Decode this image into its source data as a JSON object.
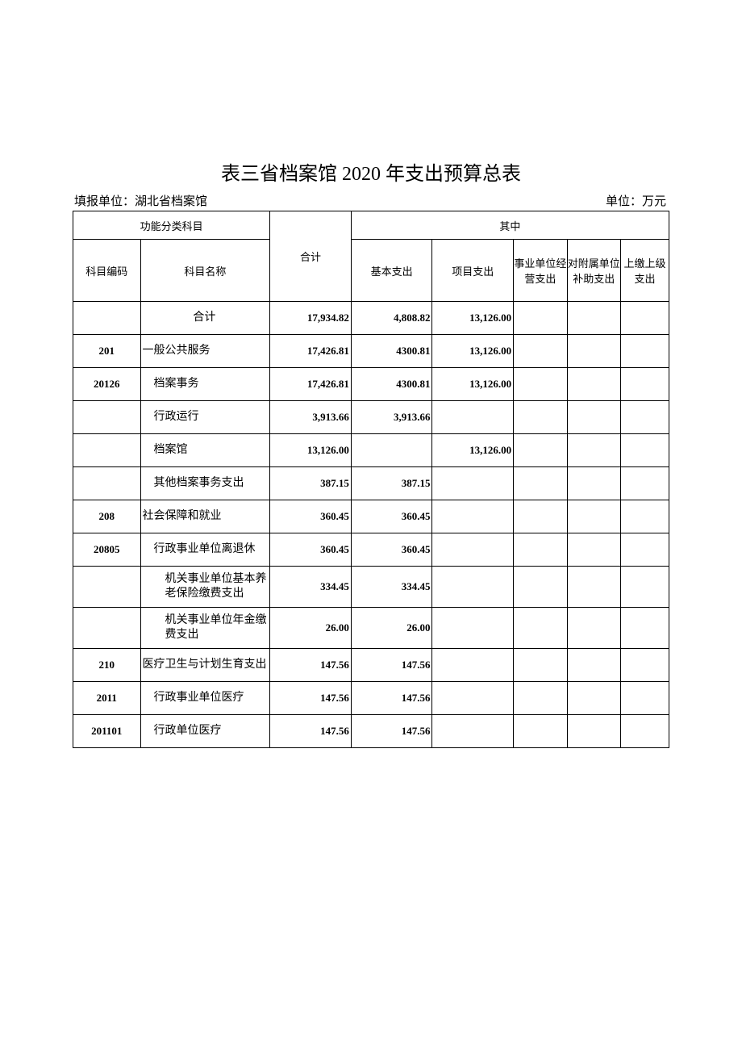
{
  "title": "表三省档案馆 2020 年支出预算总表",
  "meta": {
    "reporter_label": "填报单位：湖北省档案馆",
    "unit_label": "单位：万元"
  },
  "header": {
    "func_category": "功能分类科目",
    "total": "合计",
    "wherein": "其中",
    "code": "科目编码",
    "name": "科目名称",
    "basic": "基本支出",
    "project": "项目支出",
    "biz": "事业单位经营支出",
    "subsidy": "对附属单位补助支出",
    "up": "上缴上级支出"
  },
  "rows": [
    {
      "code": "",
      "name": "合计",
      "nameClass": "center",
      "total": "17,934.82",
      "basic": "4,808.82",
      "project": "13,126.00",
      "biz": "",
      "subsidy": "",
      "up": ""
    },
    {
      "code": "201",
      "name": "一般公共服务",
      "nameClass": "",
      "total": "17,426.81",
      "basic": "4300.81",
      "project": "13,126.00",
      "biz": "",
      "subsidy": "",
      "up": ""
    },
    {
      "code": "20126",
      "name": "档案事务",
      "nameClass": "indent1",
      "total": "17,426.81",
      "basic": "4300.81",
      "project": "13,126.00",
      "biz": "",
      "subsidy": "",
      "up": ""
    },
    {
      "code": "",
      "name": "行政运行",
      "nameClass": "indent1",
      "total": "3,913.66",
      "basic": "3,913.66",
      "project": "",
      "biz": "",
      "subsidy": "",
      "up": ""
    },
    {
      "code": "",
      "name": "档案馆",
      "nameClass": "indent1",
      "total": "13,126.00",
      "basic": "",
      "project": "13,126.00",
      "biz": "",
      "subsidy": "",
      "up": ""
    },
    {
      "code": "",
      "name": "其他档案事务支出",
      "nameClass": "indent1",
      "total": "387.15",
      "basic": "387.15",
      "project": "",
      "biz": "",
      "subsidy": "",
      "up": ""
    },
    {
      "code": "208",
      "name": "社会保障和就业",
      "nameClass": "",
      "total": "360.45",
      "basic": "360.45",
      "project": "",
      "biz": "",
      "subsidy": "",
      "up": ""
    },
    {
      "code": "20805",
      "name": "行政事业单位离退休",
      "nameClass": "indent1",
      "total": "360.45",
      "basic": "360.45",
      "project": "",
      "biz": "",
      "subsidy": "",
      "up": ""
    },
    {
      "code": "",
      "name": "机关事业单位基本养老保险缴费支出",
      "nameClass": "indent2",
      "total": "334.45",
      "basic": "334.45",
      "project": "",
      "biz": "",
      "subsidy": "",
      "up": "",
      "tall": true
    },
    {
      "code": "",
      "name": "机关事业单位年金缴费支出",
      "nameClass": "indent2",
      "total": "26.00",
      "basic": "26.00",
      "project": "",
      "biz": "",
      "subsidy": "",
      "up": "",
      "tall": true
    },
    {
      "code": "210",
      "name": "医疗卫生与计划生育支出",
      "nameClass": "",
      "total": "147.56",
      "basic": "147.56",
      "project": "",
      "biz": "",
      "subsidy": "",
      "up": ""
    },
    {
      "code": "2011",
      "name": "行政事业单位医疗",
      "nameClass": "indent1",
      "total": "147.56",
      "basic": "147.56",
      "project": "",
      "biz": "",
      "subsidy": "",
      "up": ""
    },
    {
      "code": "201101",
      "name": "行政单位医疗",
      "nameClass": "indent1",
      "total": "147.56",
      "basic": "147.56",
      "project": "",
      "biz": "",
      "subsidy": "",
      "up": ""
    }
  ],
  "style": {
    "page_bg": "#ffffff",
    "text_color": "#000000",
    "border_color": "#000000",
    "title_fontsize": 24,
    "body_fontsize": 13,
    "meta_fontsize": 15
  }
}
